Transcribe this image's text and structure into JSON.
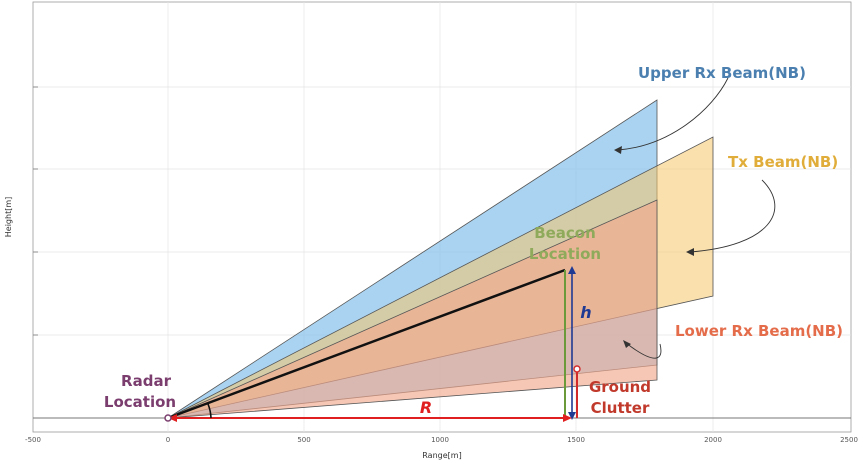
{
  "axes": {
    "xlabel": "Range[m]",
    "ylabel": "Height[m]",
    "x_ticks": [
      "-500",
      "0",
      "500",
      "1000",
      "1500",
      "2000",
      "2500"
    ]
  },
  "labels": {
    "upper_rx": "Upper Rx Beam(NB)",
    "tx": "Tx Beam(NB)",
    "lower_rx": "Lower Rx Beam(NB)",
    "beacon_line1": "Beacon",
    "beacon_line2": "Location",
    "radar_line1": "Radar",
    "radar_line2": "Location",
    "ground_line1": "Ground",
    "ground_line2": "Clutter",
    "h": "h",
    "R": "R"
  },
  "colors": {
    "upper_rx": "#4a7fb0",
    "tx": "#e8b84a",
    "lower_rx": "#e46c4a",
    "beacon": "#8faa5a",
    "radar": "#7a3d6e",
    "ground": "#c0392b",
    "arrow_h": "#1f3a93"
  }
}
